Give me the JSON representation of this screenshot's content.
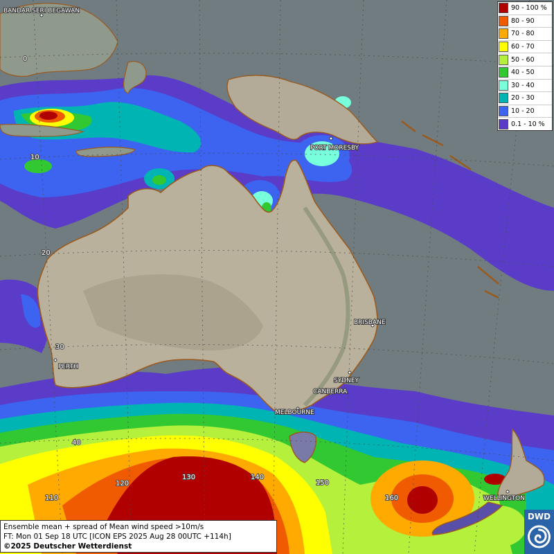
{
  "title": "Ensemble mean + spread of Mean wind speed >10m/s",
  "forecast_time": "FT: Mon 01 Sep 18 UTC [ICON EPS 2025 Aug 28 00UTC +114h]",
  "copyright": "©2025 Deutscher Wetterdienst",
  "logo_text": "DWD",
  "legend": [
    {
      "label": "90 - 100 %",
      "color": "#b00000"
    },
    {
      "label": "80 - 90",
      "color": "#f05a00"
    },
    {
      "label": "70 - 80",
      "color": "#ffaa00"
    },
    {
      "label": "60 - 70",
      "color": "#ffff00"
    },
    {
      "label": "50 - 60",
      "color": "#b4f03c"
    },
    {
      "label": "40 - 50",
      "color": "#32c832"
    },
    {
      "label": "30 - 40",
      "color": "#78ffdc"
    },
    {
      "label": "20 - 30",
      "color": "#00b4b4"
    },
    {
      "label": "10 - 20",
      "color": "#3c64f0"
    },
    {
      "label": "0.1 - 10 %",
      "color": "#5a3cc8"
    }
  ],
  "cities": {
    "bandar": "BANDAR SERI BEGAWAN",
    "port_moresby": "PORT MORESBY",
    "brisbane": "BRISBANE",
    "perth": "PERTH",
    "sydney": "SYDNEY",
    "canberra": "CANBERRA",
    "melbourne": "MELBOURNE",
    "wellington": "WELLINGTON"
  },
  "grid_labels": {
    "lat_0": "0",
    "lat_10": "10",
    "lat_20": "20",
    "lat_30": "30",
    "lat_40": "40",
    "lon_110": "110",
    "lon_120": "120",
    "lon_130": "130",
    "lon_140": "140",
    "lon_150": "150",
    "lon_160": "160"
  }
}
